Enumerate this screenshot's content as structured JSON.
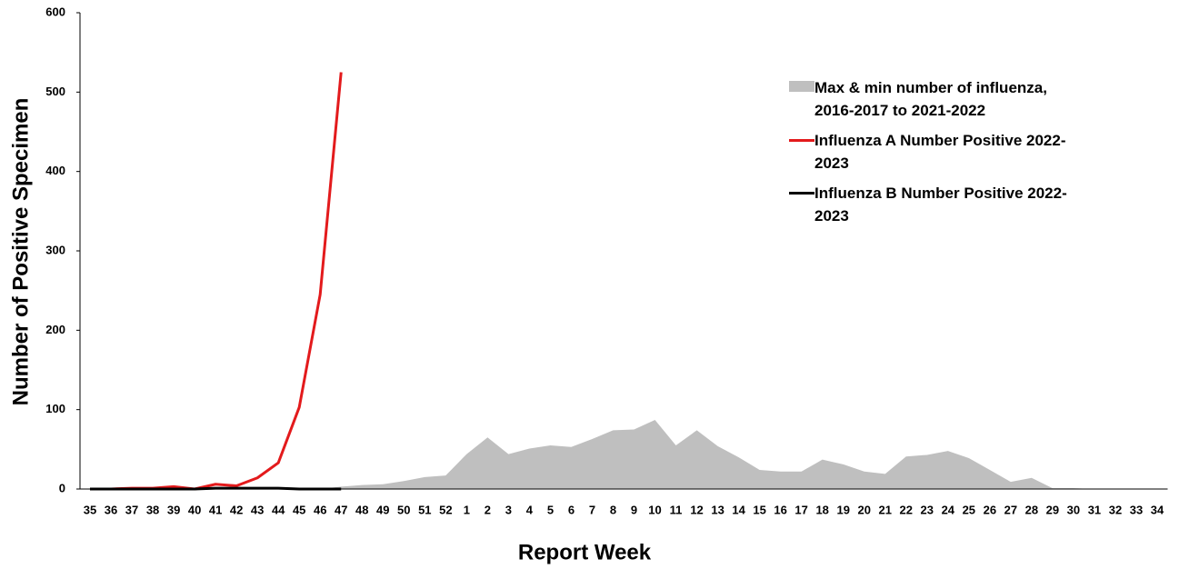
{
  "chart_data": {
    "type": "line",
    "x_label": "Report Week",
    "y_label": "Number of Positive Specimen",
    "categories": [
      "35",
      "36",
      "37",
      "38",
      "39",
      "40",
      "41",
      "42",
      "43",
      "44",
      "45",
      "46",
      "47",
      "48",
      "49",
      "50",
      "51",
      "52",
      "1",
      "2",
      "3",
      "4",
      "5",
      "6",
      "7",
      "8",
      "9",
      "10",
      "11",
      "12",
      "13",
      "14",
      "15",
      "16",
      "17",
      "18",
      "19",
      "20",
      "21",
      "22",
      "23",
      "24",
      "25",
      "26",
      "27",
      "28",
      "29",
      "30",
      "31",
      "32",
      "33",
      "34"
    ],
    "ylim": [
      0,
      600
    ],
    "yticks": [
      0,
      100,
      200,
      300,
      400,
      500,
      600
    ],
    "grid": false,
    "series": [
      {
        "name": "Max & min number of influenza, 2016-2017 to 2021-2022",
        "type": "area",
        "color": "#bfbfbf",
        "values": [
          0,
          0,
          0,
          0,
          0,
          0,
          0,
          0,
          0,
          0,
          0,
          0,
          3,
          5,
          6,
          10,
          15,
          17,
          44,
          65,
          44,
          51,
          55,
          53,
          63,
          74,
          75,
          87,
          55,
          74,
          54,
          40,
          24,
          22,
          22,
          37,
          31,
          22,
          19,
          41,
          43,
          48,
          39,
          24,
          9,
          14,
          1,
          1,
          0,
          0,
          0,
          0
        ]
      },
      {
        "name": "Influenza A Number Positive 2022-2023",
        "type": "line",
        "color": "#e31a1c",
        "values": [
          0,
          0,
          1,
          1,
          3,
          0,
          6,
          4,
          14,
          33,
          103,
          245,
          525,
          null,
          null,
          null,
          null,
          null,
          null,
          null,
          null,
          null,
          null,
          null,
          null,
          null,
          null,
          null,
          null,
          null,
          null,
          null,
          null,
          null,
          null,
          null,
          null,
          null,
          null,
          null,
          null,
          null,
          null,
          null,
          null,
          null,
          null,
          null,
          null,
          null,
          null,
          null
        ]
      },
      {
        "name": "Influenza B Number Positive 2022-2023",
        "type": "line",
        "color": "#000000",
        "values": [
          0,
          0,
          0,
          0,
          0,
          0,
          1,
          1,
          1,
          1,
          0,
          0,
          0,
          null,
          null,
          null,
          null,
          null,
          null,
          null,
          null,
          null,
          null,
          null,
          null,
          null,
          null,
          null,
          null,
          null,
          null,
          null,
          null,
          null,
          null,
          null,
          null,
          null,
          null,
          null,
          null,
          null,
          null,
          null,
          null,
          null,
          null,
          null,
          null,
          null,
          null,
          null
        ]
      }
    ]
  }
}
